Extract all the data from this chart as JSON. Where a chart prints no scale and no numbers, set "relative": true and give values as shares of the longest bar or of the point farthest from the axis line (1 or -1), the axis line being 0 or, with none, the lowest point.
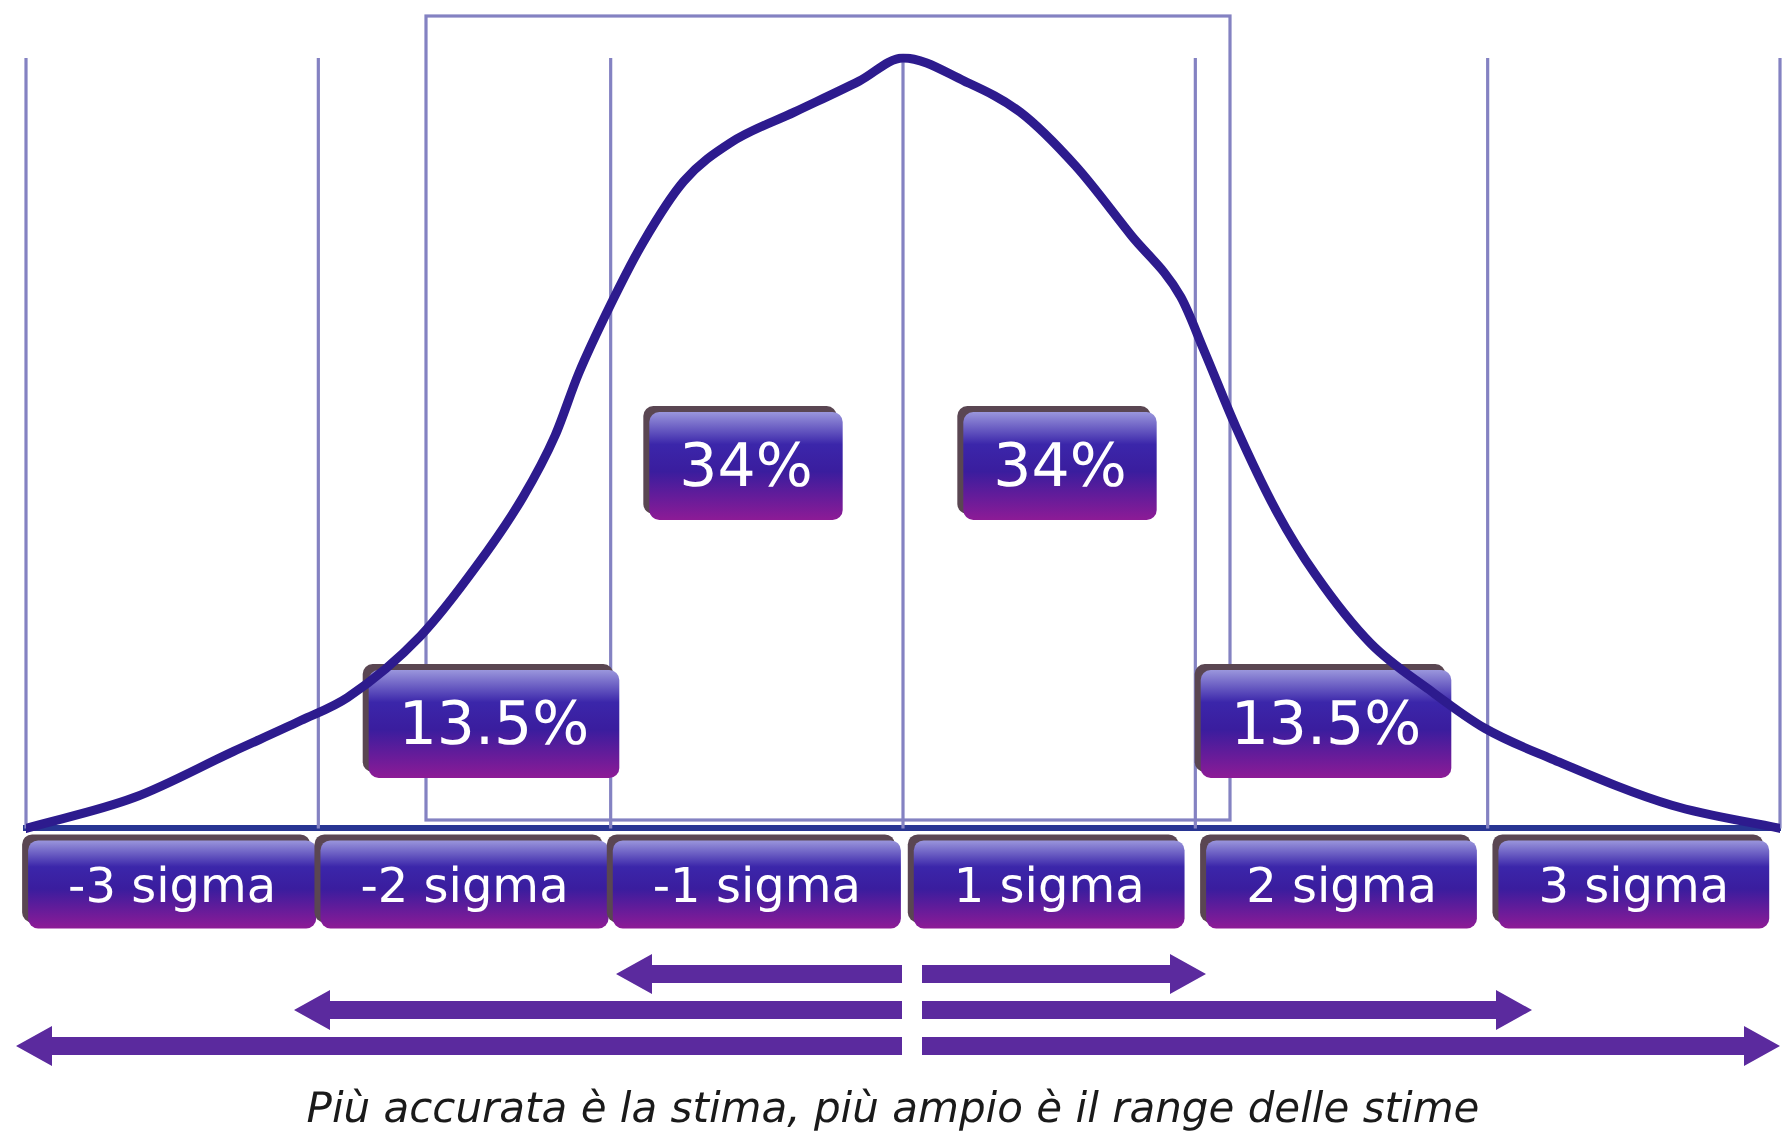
{
  "chart_data": {
    "type": "line",
    "relative": true,
    "xlim": [
      -3,
      3
    ],
    "xticks": [
      {
        "value": -2.5,
        "label": "-3 sigma"
      },
      {
        "value": -1.5,
        "label": "-2 sigma"
      },
      {
        "value": -0.5,
        "label": "-1 sigma"
      },
      {
        "value": 0.5,
        "label": "1 sigma"
      },
      {
        "value": 1.5,
        "label": "2 sigma"
      },
      {
        "value": 2.5,
        "label": "3 sigma"
      }
    ],
    "x": [
      -3,
      -2.63,
      -2.29,
      -2.06,
      -1.9,
      -1.65,
      -1.46,
      -1.3,
      -1.19,
      -1.11,
      -1,
      -0.89,
      -0.75,
      -0.59,
      -0.37,
      -0.15,
      0,
      0.21,
      0.4,
      0.59,
      0.78,
      0.95,
      1.03,
      1.14,
      1.28,
      1.41,
      1.6,
      1.8,
      1.99,
      2.22,
      2.63,
      3
    ],
    "series": [
      {
        "color": "#2d1b8e",
        "values": [
          0,
          0.04,
          0.1,
          0.14,
          0.17,
          0.25,
          0.34,
          0.43,
          0.51,
          0.59,
          0.68,
          0.76,
          0.84,
          0.89,
          0.93,
          0.97,
          1,
          0.97,
          0.93,
          0.86,
          0.77,
          0.69,
          0.62,
          0.52,
          0.41,
          0.33,
          0.24,
          0.18,
          0.13,
          0.09,
          0.03,
          0
        ]
      }
    ],
    "ref_lines": [
      {
        "axis": "x",
        "value": -3,
        "color": "#8482c2"
      },
      {
        "axis": "x",
        "value": -2,
        "color": "#8482c2"
      },
      {
        "axis": "x",
        "value": -1,
        "color": "#8482c2"
      },
      {
        "axis": "x",
        "value": 0,
        "color": "#8482c2"
      },
      {
        "axis": "x",
        "value": 1,
        "color": "#8482c2"
      },
      {
        "axis": "x",
        "value": 2,
        "color": "#8482c2"
      },
      {
        "axis": "x",
        "value": 3,
        "color": "#8482c2"
      }
    ],
    "annotations": [
      "34%",
      "34%",
      "13.5%",
      "13.5%",
      "Più accurata è la stima, più ampio è il range delle stime"
    ]
  }
}
